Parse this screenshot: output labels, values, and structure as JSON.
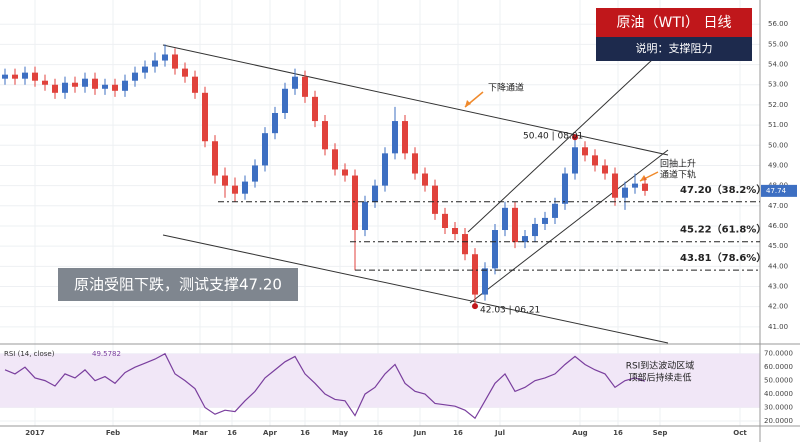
{
  "chart_data": {
    "type": "candlestick",
    "title": "原油（WTI） 日线",
    "subtitle": "说明：支撑阻力",
    "open": [
      53.3,
      53.5,
      53.3,
      53.6,
      53.2,
      53.0,
      52.6,
      53.1,
      52.9,
      53.3,
      52.8,
      53.0,
      52.7,
      53.2,
      53.6,
      53.9,
      54.2,
      54.5,
      53.8,
      53.4,
      52.6,
      50.2,
      48.5,
      48.0,
      47.6,
      48.2,
      49.0,
      50.6,
      51.6,
      52.8,
      53.4,
      52.4,
      51.2,
      49.8,
      48.8,
      48.5,
      45.8,
      47.2,
      48.0,
      49.6,
      51.2,
      49.6,
      48.6,
      48.0,
      46.6,
      45.9,
      45.6,
      44.6,
      42.6,
      43.9,
      45.8,
      46.9,
      45.2,
      45.5,
      46.1,
      46.4,
      47.1,
      48.6,
      49.9,
      49.5,
      49.0,
      48.6,
      47.4,
      47.9,
      48.1
    ],
    "high": [
      53.8,
      53.8,
      53.9,
      53.9,
      53.5,
      53.3,
      53.4,
      53.4,
      53.6,
      53.6,
      53.3,
      53.3,
      53.5,
      53.9,
      54.2,
      54.6,
      55.0,
      54.8,
      54.1,
      53.7,
      52.9,
      50.5,
      48.9,
      48.4,
      48.5,
      49.3,
      50.9,
      51.9,
      53.1,
      53.8,
      53.7,
      52.7,
      51.5,
      50.1,
      49.1,
      48.8,
      47.5,
      48.3,
      49.9,
      51.9,
      51.5,
      49.9,
      48.9,
      48.3,
      46.9,
      46.2,
      45.9,
      44.9,
      44.2,
      46.1,
      47.2,
      47.2,
      45.8,
      46.4,
      46.7,
      47.4,
      48.9,
      50.4,
      50.2,
      49.8,
      49.3,
      48.9,
      48.2,
      48.6,
      48.4
    ],
    "low": [
      53.0,
      53.0,
      53.0,
      52.9,
      52.7,
      52.3,
      52.3,
      52.6,
      52.6,
      52.5,
      52.5,
      52.4,
      52.4,
      52.9,
      53.3,
      53.6,
      53.9,
      53.5,
      53.1,
      52.3,
      49.9,
      48.1,
      47.4,
      47.2,
      47.3,
      47.9,
      48.7,
      50.3,
      51.3,
      52.5,
      52.1,
      50.9,
      49.5,
      48.5,
      48.2,
      43.8,
      45.5,
      46.9,
      47.7,
      49.3,
      49.3,
      48.3,
      47.7,
      46.3,
      45.6,
      45.3,
      44.3,
      42.03,
      42.3,
      43.6,
      45.5,
      44.9,
      44.9,
      45.2,
      45.8,
      46.1,
      46.8,
      48.3,
      49.2,
      48.7,
      48.3,
      47.0,
      46.8,
      47.6,
      47.5
    ],
    "close": [
      53.5,
      53.3,
      53.6,
      53.2,
      53.0,
      52.6,
      53.1,
      52.9,
      53.3,
      52.8,
      53.0,
      52.7,
      53.2,
      53.6,
      53.9,
      54.2,
      54.5,
      53.8,
      53.4,
      52.6,
      50.2,
      48.5,
      48.0,
      47.6,
      48.2,
      49.0,
      50.6,
      51.6,
      52.8,
      53.4,
      52.4,
      51.2,
      49.8,
      48.8,
      48.5,
      45.8,
      47.2,
      48.0,
      49.6,
      51.2,
      49.6,
      48.6,
      48.0,
      46.6,
      45.9,
      45.6,
      44.6,
      42.6,
      43.9,
      45.8,
      46.9,
      45.2,
      45.5,
      46.1,
      46.4,
      47.1,
      48.6,
      49.9,
      49.5,
      49.0,
      48.6,
      47.4,
      47.9,
      48.1,
      47.74
    ],
    "up_color": "#3d6fc2",
    "down_color": "#e0423c",
    "xlim": [
      -0.5,
      75.5
    ],
    "xticks": [
      {
        "value": 3,
        "label": "2017"
      },
      {
        "value": 10.8,
        "label": "Feb"
      },
      {
        "value": 19.5,
        "label": "Mar"
      },
      {
        "value": 22.7,
        "label": "16"
      },
      {
        "value": 26.5,
        "label": "Apr"
      },
      {
        "value": 30,
        "label": "16"
      },
      {
        "value": 33.5,
        "label": "May"
      },
      {
        "value": 37.3,
        "label": "16"
      },
      {
        "value": 41.5,
        "label": "Jun"
      },
      {
        "value": 45.3,
        "label": "16"
      },
      {
        "value": 49.5,
        "label": "Jul"
      },
      {
        "value": 57.5,
        "label": "Aug"
      },
      {
        "value": 61.3,
        "label": "16"
      },
      {
        "value": 65.5,
        "label": "Sep"
      },
      {
        "value": 73.5,
        "label": "Oct"
      }
    ],
    "ylim": [
      40.2,
      57.2
    ],
    "yticks": [
      {
        "value": 41,
        "label": "41.00"
      },
      {
        "value": 42,
        "label": "42.00"
      },
      {
        "value": 43,
        "label": "43.00"
      },
      {
        "value": 44,
        "label": "44.00"
      },
      {
        "value": 45,
        "label": "45.00"
      },
      {
        "value": 46,
        "label": "46.00"
      },
      {
        "value": 47,
        "label": "47.00"
      },
      {
        "value": 48,
        "label": "48.00"
      },
      {
        "value": 49,
        "label": "49.00"
      },
      {
        "value": 50,
        "label": "50.00"
      },
      {
        "value": 51,
        "label": "51.00"
      },
      {
        "value": 52,
        "label": "52.00"
      },
      {
        "value": 53,
        "label": "53.00"
      },
      {
        "value": 54,
        "label": "54.00"
      },
      {
        "value": 55,
        "label": "55.00"
      },
      {
        "value": 56,
        "label": "56.00"
      }
    ],
    "grid": true,
    "levels": [
      {
        "value": 47.2,
        "label": "47.20（38.2%）"
      },
      {
        "value": 45.22,
        "label": "45.22（61.8%）"
      },
      {
        "value": 43.81,
        "label": "43.81（78.6%）"
      }
    ],
    "annotations": {
      "channel": "下降通道",
      "high_point": "50.40 | 08.01",
      "low_point": "42.03 | 06.21",
      "pullback": [
        "回抽上升",
        "通道下轨"
      ],
      "headline": "原油受阻下跌，测试支撑47.20"
    },
    "rsi": {
      "title": "RSI (14, close)",
      "values": [
        58,
        55,
        60,
        52,
        50,
        46,
        55,
        52,
        58,
        50,
        53,
        48,
        56,
        60,
        63,
        66,
        70,
        55,
        50,
        44,
        30,
        25,
        28,
        27,
        35,
        42,
        52,
        58,
        64,
        68,
        55,
        48,
        40,
        36,
        35,
        24,
        40,
        45,
        55,
        62,
        48,
        42,
        40,
        33,
        32,
        31,
        28,
        22,
        35,
        48,
        55,
        42,
        45,
        50,
        52,
        55,
        62,
        68,
        62,
        58,
        55,
        45,
        50,
        52,
        49.5782
      ],
      "color": "#7a3f9e",
      "band": [
        30,
        70
      ],
      "ylim": [
        17,
        75
      ],
      "yticks": [
        {
          "value": 70,
          "label": "70.0000"
        },
        {
          "value": 60,
          "label": "60.0000"
        },
        {
          "value": 50,
          "label": "50.0000"
        },
        {
          "value": 40,
          "label": "40.0000"
        },
        {
          "value": 30,
          "label": "30.0000"
        },
        {
          "value": 20,
          "label": "20.0000"
        }
      ],
      "note": [
        "RSI到达波动区域",
        "顶部后持续走低"
      ]
    }
  }
}
